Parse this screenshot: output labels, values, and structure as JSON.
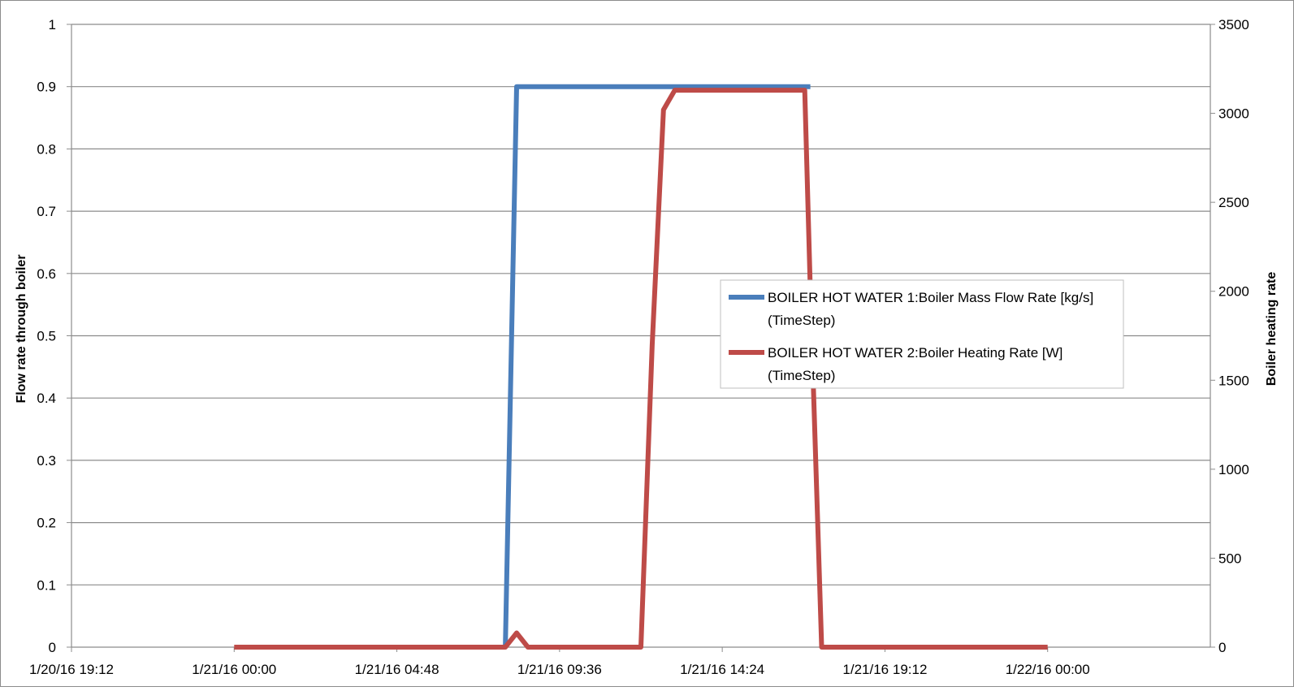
{
  "chart_data": {
    "type": "line",
    "title": "",
    "xlabel": "",
    "ylabel": "Flow rate through boiler",
    "y2label": "Boiler heating rate",
    "ylim": [
      0,
      1
    ],
    "y2lim": [
      0,
      3500
    ],
    "xlim": [
      "1/20/16 19:12",
      "1/22/16 04:48"
    ],
    "x_ticks": [
      "1/20/16 19:12",
      "1/21/16 00:00",
      "1/21/16 04:48",
      "1/21/16 09:36",
      "1/21/16 14:24",
      "1/21/16 19:12",
      "1/22/16 00:00"
    ],
    "y_ticks": [
      "0",
      "0.1",
      "0.2",
      "0.3",
      "0.4",
      "0.5",
      "0.6",
      "0.7",
      "0.8",
      "0.9",
      "1"
    ],
    "y2_ticks": [
      "0",
      "500",
      "1000",
      "1500",
      "2000",
      "2500",
      "3000",
      "3500"
    ],
    "grid": true,
    "legend_position": "center-right",
    "series": [
      {
        "name": "BOILER HOT WATER 1:Boiler Mass Flow Rate [kg/s]",
        "name_line2": "(TimeStep)",
        "axis": "left",
        "color": "#4a7ebb",
        "x": [
          "1/21/16 08:00",
          "1/21/16 08:20",
          "1/21/16 17:00"
        ],
        "values": [
          0,
          0.9,
          0.9
        ]
      },
      {
        "name": "BOILER HOT WATER 2:Boiler Heating Rate [W]",
        "name_line2": "(TimeStep)",
        "axis": "right",
        "color": "#be4b48",
        "x": [
          "1/21/16 00:00",
          "1/21/16 08:00",
          "1/21/16 08:20",
          "1/21/16 08:40",
          "1/21/16 12:00",
          "1/21/16 12:20",
          "1/21/16 12:40",
          "1/21/16 13:00",
          "1/21/16 16:50",
          "1/21/16 17:00",
          "1/21/16 17:20",
          "1/22/16 00:00"
        ],
        "values": [
          0,
          0,
          80,
          0,
          0,
          1700,
          3020,
          3130,
          3130,
          2000,
          0,
          0
        ]
      }
    ]
  }
}
